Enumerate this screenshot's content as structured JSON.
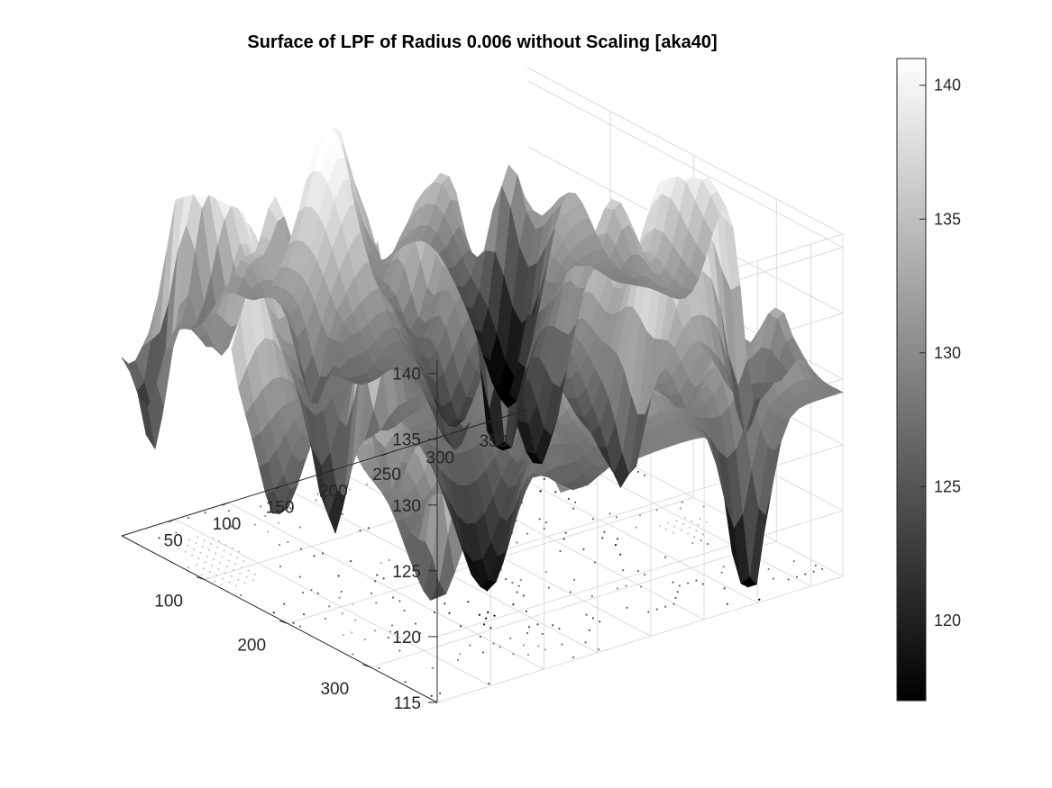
{
  "chart_data": {
    "type": "surface",
    "title": "Surface of LPF of Radius 0.006 without Scaling [aka40]",
    "colormap": "gray",
    "grid": true,
    "base_contours": true,
    "x_ticks": [
      50,
      100,
      150,
      200,
      250,
      300,
      350
    ],
    "y_ticks": [
      100,
      200,
      300
    ],
    "z_ticks": [
      115,
      120,
      125,
      130,
      135,
      140
    ],
    "xlim": [
      0,
      380
    ],
    "ylim": [
      0,
      380
    ],
    "zlim": [
      115,
      141
    ],
    "colorbar": {
      "ticks": [
        120,
        125,
        130,
        135,
        140
      ],
      "range": [
        117,
        141
      ],
      "placement": "right"
    },
    "surface_peaks": [
      {
        "x": 25,
        "y": 15,
        "z": 117.6
      },
      {
        "x": 120,
        "y": 150,
        "z": 140.8
      },
      {
        "x": 25,
        "y": 360,
        "z": 139.3
      },
      {
        "x": 330,
        "y": 40,
        "z": 136.4
      },
      {
        "x": 200,
        "y": 250,
        "z": 136.5
      }
    ]
  }
}
